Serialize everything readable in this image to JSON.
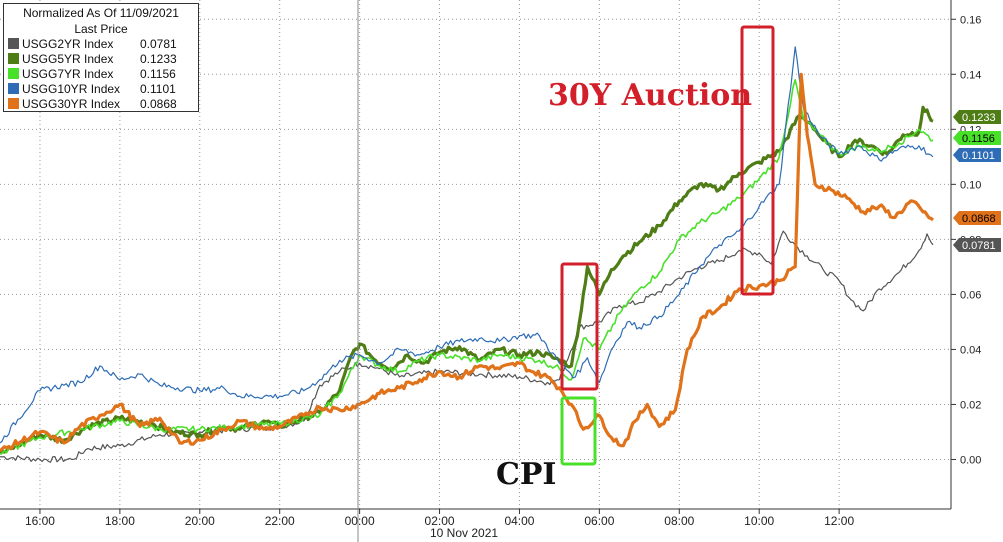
{
  "chart_data": {
    "type": "line",
    "title": "",
    "xlabel": "10 Nov 2021",
    "ylabel": "",
    "ylim": [
      -0.018,
      0.167
    ],
    "y_ticks": [
      0.0,
      0.02,
      0.04,
      0.06,
      0.08,
      0.1,
      0.12,
      0.14,
      0.16
    ],
    "y_tick_labels": [
      "0.00",
      "0.02",
      "0.04",
      "0.06",
      "0.08",
      "0.10",
      "0.12",
      "0.14",
      "0.16"
    ],
    "x_ticks": [
      16,
      18,
      20,
      22,
      24,
      26,
      28,
      30,
      32,
      34,
      36
    ],
    "x_tick_labels": [
      "16:00",
      "18:00",
      "20:00",
      "22:00",
      "00:00",
      "02:00",
      "04:00",
      "06:00",
      "08:00",
      "10:00",
      "12:00"
    ],
    "x_range_hours": [
      15.0,
      38.8
    ],
    "grid": true,
    "legend": {
      "placement": "top-left",
      "title_line1": "Normalized As Of 11/09/2021",
      "title_line2": "Last Price"
    },
    "series": [
      {
        "name": "USGG2YR Index",
        "last": "0.0781",
        "color": "#555555",
        "points": [
          [
            15.0,
            0.001
          ],
          [
            16.0,
            0.0
          ],
          [
            16.8,
            0.0
          ],
          [
            17.2,
            0.004
          ],
          [
            18.0,
            0.005
          ],
          [
            19.0,
            0.009
          ],
          [
            20.0,
            0.01
          ],
          [
            21.0,
            0.011
          ],
          [
            22.0,
            0.012
          ],
          [
            22.6,
            0.014
          ],
          [
            23.0,
            0.027
          ],
          [
            23.5,
            0.032
          ],
          [
            24.0,
            0.035
          ],
          [
            24.5,
            0.033
          ],
          [
            25.0,
            0.03
          ],
          [
            26.0,
            0.032
          ],
          [
            27.0,
            0.031
          ],
          [
            28.0,
            0.03
          ],
          [
            28.7,
            0.028
          ],
          [
            29.0,
            0.029
          ],
          [
            29.5,
            0.048
          ],
          [
            30.0,
            0.05
          ],
          [
            30.5,
            0.056
          ],
          [
            31.0,
            0.057
          ],
          [
            31.5,
            0.061
          ],
          [
            32.0,
            0.066
          ],
          [
            32.5,
            0.07
          ],
          [
            33.0,
            0.072
          ],
          [
            33.5,
            0.076
          ],
          [
            34.0,
            0.075
          ],
          [
            34.3,
            0.071
          ],
          [
            34.6,
            0.083
          ],
          [
            34.9,
            0.078
          ],
          [
            35.2,
            0.074
          ],
          [
            35.6,
            0.069
          ],
          [
            36.0,
            0.065
          ],
          [
            36.3,
            0.058
          ],
          [
            36.6,
            0.054
          ],
          [
            37.0,
            0.062
          ],
          [
            37.5,
            0.068
          ],
          [
            38.0,
            0.076
          ],
          [
            38.2,
            0.082
          ],
          [
            38.35,
            0.078
          ]
        ]
      },
      {
        "name": "USGG5YR Index",
        "last": "0.1233",
        "color": "#4e7d16",
        "points": [
          [
            15.0,
            0.002
          ],
          [
            16.0,
            0.009
          ],
          [
            16.6,
            0.007
          ],
          [
            17.2,
            0.012
          ],
          [
            18.0,
            0.015
          ],
          [
            18.8,
            0.013
          ],
          [
            19.3,
            0.01
          ],
          [
            20.0,
            0.009
          ],
          [
            20.6,
            0.012
          ],
          [
            21.0,
            0.011
          ],
          [
            21.6,
            0.014
          ],
          [
            22.0,
            0.012
          ],
          [
            22.6,
            0.015
          ],
          [
            23.0,
            0.017
          ],
          [
            23.5,
            0.025
          ],
          [
            23.8,
            0.038
          ],
          [
            24.0,
            0.042
          ],
          [
            24.4,
            0.036
          ],
          [
            24.8,
            0.033
          ],
          [
            25.2,
            0.038
          ],
          [
            25.6,
            0.035
          ],
          [
            26.0,
            0.039
          ],
          [
            26.5,
            0.041
          ],
          [
            27.0,
            0.036
          ],
          [
            27.5,
            0.04
          ],
          [
            28.0,
            0.038
          ],
          [
            28.5,
            0.039
          ],
          [
            29.0,
            0.036
          ],
          [
            29.3,
            0.034
          ],
          [
            29.5,
            0.05
          ],
          [
            29.7,
            0.07
          ],
          [
            30.0,
            0.06
          ],
          [
            30.3,
            0.069
          ],
          [
            30.6,
            0.074
          ],
          [
            31.0,
            0.079
          ],
          [
            31.5,
            0.085
          ],
          [
            32.0,
            0.094
          ],
          [
            32.5,
            0.1
          ],
          [
            33.0,
            0.098
          ],
          [
            33.5,
            0.104
          ],
          [
            34.0,
            0.108
          ],
          [
            34.5,
            0.112
          ],
          [
            35.0,
            0.125
          ],
          [
            35.3,
            0.122
          ],
          [
            35.6,
            0.116
          ],
          [
            36.0,
            0.11
          ],
          [
            36.4,
            0.116
          ],
          [
            36.8,
            0.114
          ],
          [
            37.2,
            0.111
          ],
          [
            37.6,
            0.118
          ],
          [
            38.0,
            0.119
          ],
          [
            38.1,
            0.128
          ],
          [
            38.35,
            0.123
          ]
        ]
      },
      {
        "name": "USGG7YR Index",
        "last": "0.1156",
        "color": "#49e02a",
        "points": [
          [
            15.0,
            0.002
          ],
          [
            16.0,
            0.008
          ],
          [
            17.0,
            0.011
          ],
          [
            18.0,
            0.014
          ],
          [
            19.0,
            0.011
          ],
          [
            20.0,
            0.011
          ],
          [
            21.0,
            0.012
          ],
          [
            22.0,
            0.013
          ],
          [
            23.0,
            0.016
          ],
          [
            23.5,
            0.024
          ],
          [
            24.0,
            0.038
          ],
          [
            24.5,
            0.034
          ],
          [
            25.0,
            0.032
          ],
          [
            25.5,
            0.036
          ],
          [
            26.0,
            0.038
          ],
          [
            27.0,
            0.036
          ],
          [
            27.5,
            0.038
          ],
          [
            28.0,
            0.037
          ],
          [
            28.5,
            0.036
          ],
          [
            29.0,
            0.033
          ],
          [
            29.3,
            0.029
          ],
          [
            29.6,
            0.044
          ],
          [
            30.0,
            0.04
          ],
          [
            30.5,
            0.053
          ],
          [
            31.0,
            0.062
          ],
          [
            31.5,
            0.068
          ],
          [
            32.0,
            0.08
          ],
          [
            32.5,
            0.086
          ],
          [
            33.0,
            0.09
          ],
          [
            33.5,
            0.095
          ],
          [
            34.0,
            0.102
          ],
          [
            34.5,
            0.11
          ],
          [
            34.9,
            0.138
          ],
          [
            35.1,
            0.124
          ],
          [
            35.5,
            0.118
          ],
          [
            36.0,
            0.111
          ],
          [
            36.5,
            0.114
          ],
          [
            37.0,
            0.112
          ],
          [
            37.5,
            0.115
          ],
          [
            38.0,
            0.12
          ],
          [
            38.35,
            0.116
          ]
        ]
      },
      {
        "name": "USGG10YR Index",
        "last": "0.1101",
        "color": "#2e6db5",
        "points": [
          [
            15.0,
            0.006
          ],
          [
            16.0,
            0.025
          ],
          [
            16.6,
            0.027
          ],
          [
            17.0,
            0.028
          ],
          [
            17.5,
            0.034
          ],
          [
            18.0,
            0.029
          ],
          [
            18.5,
            0.031
          ],
          [
            19.0,
            0.027
          ],
          [
            20.0,
            0.025
          ],
          [
            20.6,
            0.026
          ],
          [
            21.0,
            0.023
          ],
          [
            22.0,
            0.023
          ],
          [
            22.6,
            0.025
          ],
          [
            23.0,
            0.029
          ],
          [
            23.5,
            0.036
          ],
          [
            24.0,
            0.038
          ],
          [
            24.5,
            0.035
          ],
          [
            25.0,
            0.04
          ],
          [
            25.5,
            0.038
          ],
          [
            26.0,
            0.041
          ],
          [
            26.5,
            0.043
          ],
          [
            27.0,
            0.044
          ],
          [
            27.5,
            0.043
          ],
          [
            28.0,
            0.045
          ],
          [
            28.5,
            0.045
          ],
          [
            29.0,
            0.035
          ],
          [
            29.4,
            0.03
          ],
          [
            29.7,
            0.037
          ],
          [
            30.0,
            0.028
          ],
          [
            30.3,
            0.04
          ],
          [
            30.7,
            0.05
          ],
          [
            31.0,
            0.048
          ],
          [
            31.5,
            0.052
          ],
          [
            32.0,
            0.06
          ],
          [
            32.5,
            0.07
          ],
          [
            33.0,
            0.078
          ],
          [
            33.5,
            0.083
          ],
          [
            34.0,
            0.092
          ],
          [
            34.5,
            0.1
          ],
          [
            34.9,
            0.15
          ],
          [
            35.1,
            0.128
          ],
          [
            35.5,
            0.118
          ],
          [
            36.0,
            0.111
          ],
          [
            36.5,
            0.114
          ],
          [
            37.0,
            0.109
          ],
          [
            37.5,
            0.113
          ],
          [
            38.0,
            0.114
          ],
          [
            38.35,
            0.11
          ]
        ]
      },
      {
        "name": "USGG30YR Index",
        "last": "0.0868",
        "color": "#e0721a",
        "points": [
          [
            15.0,
            0.003
          ],
          [
            16.0,
            0.01
          ],
          [
            16.6,
            0.006
          ],
          [
            17.0,
            0.012
          ],
          [
            17.5,
            0.016
          ],
          [
            18.0,
            0.02
          ],
          [
            18.5,
            0.012
          ],
          [
            19.0,
            0.015
          ],
          [
            19.5,
            0.006
          ],
          [
            20.0,
            0.007
          ],
          [
            20.6,
            0.011
          ],
          [
            21.0,
            0.014
          ],
          [
            21.6,
            0.011
          ],
          [
            22.0,
            0.012
          ],
          [
            22.6,
            0.016
          ],
          [
            23.0,
            0.019
          ],
          [
            23.5,
            0.018
          ],
          [
            24.0,
            0.02
          ],
          [
            24.5,
            0.024
          ],
          [
            25.0,
            0.026
          ],
          [
            25.5,
            0.029
          ],
          [
            26.0,
            0.032
          ],
          [
            26.5,
            0.03
          ],
          [
            27.0,
            0.034
          ],
          [
            27.5,
            0.033
          ],
          [
            28.0,
            0.035
          ],
          [
            28.3,
            0.032
          ],
          [
            28.7,
            0.03
          ],
          [
            29.0,
            0.026
          ],
          [
            29.3,
            0.02
          ],
          [
            29.6,
            0.011
          ],
          [
            30.0,
            0.016
          ],
          [
            30.3,
            0.008
          ],
          [
            30.6,
            0.005
          ],
          [
            30.9,
            0.014
          ],
          [
            31.2,
            0.02
          ],
          [
            31.5,
            0.012
          ],
          [
            31.9,
            0.018
          ],
          [
            32.2,
            0.04
          ],
          [
            32.6,
            0.052
          ],
          [
            33.0,
            0.055
          ],
          [
            33.5,
            0.062
          ],
          [
            34.0,
            0.063
          ],
          [
            34.5,
            0.065
          ],
          [
            34.9,
            0.07
          ],
          [
            35.05,
            0.14
          ],
          [
            35.2,
            0.118
          ],
          [
            35.4,
            0.1
          ],
          [
            35.8,
            0.098
          ],
          [
            36.2,
            0.095
          ],
          [
            36.6,
            0.09
          ],
          [
            37.0,
            0.092
          ],
          [
            37.4,
            0.088
          ],
          [
            37.8,
            0.094
          ],
          [
            38.1,
            0.09
          ],
          [
            38.35,
            0.087
          ]
        ]
      }
    ],
    "annotations": [
      {
        "label": "30Y Auction",
        "color": "#d21f2a"
      },
      {
        "label": "CPI",
        "color": "#111111"
      }
    ]
  }
}
